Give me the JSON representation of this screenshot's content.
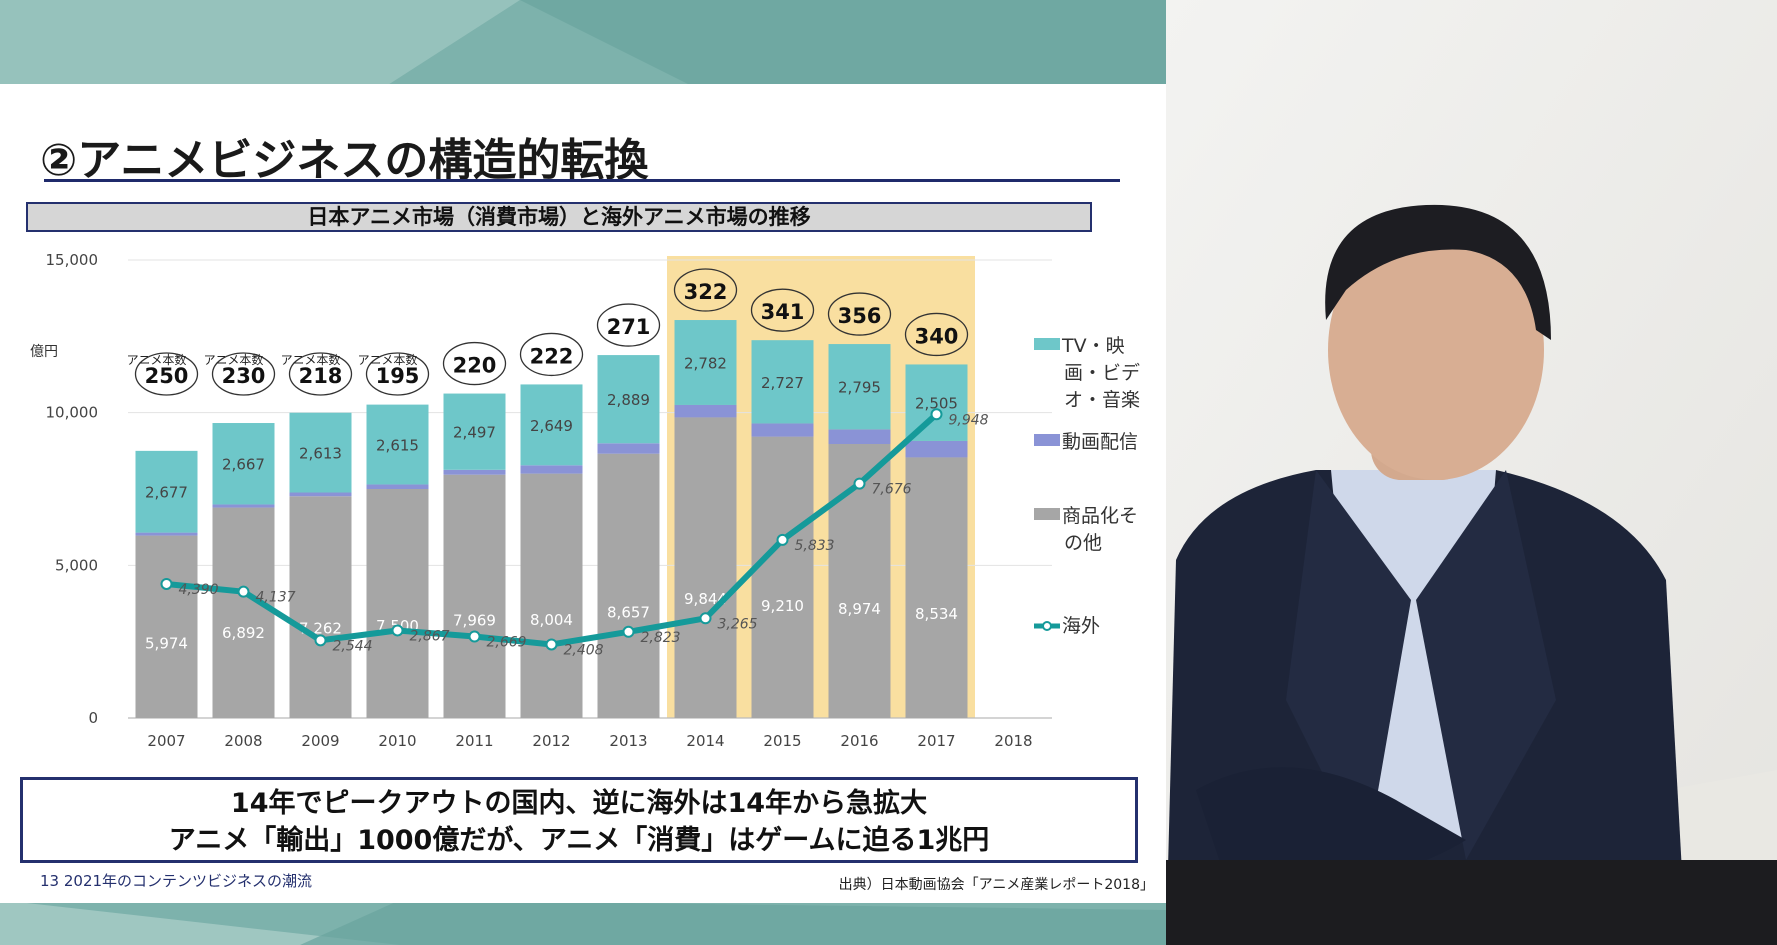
{
  "slide": {
    "title": "②アニメビジネスの構造的転換",
    "chart_header": "日本アニメ市場（消費市場）と海外アニメ市場の推移",
    "callout_line1": "14年でピークアウトの国内、逆に海外は14年から急拡大",
    "callout_line2": "アニメ「輸出」1000億だが、アニメ「消費」はゲームに迫る1兆円",
    "footer_left": "13   2021年のコンテンツビジネスの潮流",
    "footer_right": "出典）日本動画協会「アニメ産業レポート2018」"
  },
  "chart_data": {
    "type": "bar",
    "stacked": true,
    "unit_label": "億円",
    "categories": [
      "2007",
      "2008",
      "2009",
      "2010",
      "2011",
      "2012",
      "2013",
      "2014",
      "2015",
      "2016",
      "2017",
      "2018"
    ],
    "y_ticks": [
      "0",
      "5,000",
      "10,000",
      "15,000"
    ],
    "ylim": [
      0,
      15000
    ],
    "series": [
      {
        "name": "商品化その他",
        "color": "#a6a6a6",
        "values": [
          5974,
          6892,
          7262,
          7500,
          7969,
          8004,
          8657,
          9844,
          9210,
          8974,
          8534,
          null
        ]
      },
      {
        "name": "動画配信",
        "color": "#8a93d6",
        "values": [
          98,
          102,
          123,
          149,
          160,
          272,
          340,
          408,
          437,
          478,
          540,
          null
        ]
      },
      {
        "name": "TV・映画・ビデオ・音楽",
        "color": "#6ec7c9",
        "values": [
          2677,
          2667,
          2613,
          2615,
          2497,
          2649,
          2889,
          2782,
          2727,
          2795,
          2505,
          null
        ]
      }
    ],
    "line_series": {
      "name": "海外",
      "color": "#159a9a",
      "values": [
        4390,
        4137,
        2544,
        2867,
        2669,
        2408,
        2823,
        3265,
        5833,
        7676,
        9948,
        null
      ]
    },
    "line_labels": [
      "4,390",
      "4,137",
      "2,544",
      "2,867",
      "2,669",
      "2,408",
      "2,823",
      "3,265",
      "5,833",
      "7,676",
      "9,948"
    ],
    "bar_labels": {
      "goods": [
        "5,974",
        "6,892",
        "7,262",
        "7,500",
        "7,969",
        "8,004",
        "8,657",
        "9,844",
        "9,210",
        "8,974",
        "8,534"
      ],
      "streaming": [
        "98",
        "102",
        "123",
        "149",
        "160",
        "272",
        "340",
        "408",
        "437",
        "478",
        "540"
      ],
      "tv": [
        "2,677",
        "2,667",
        "2,613",
        "2,615",
        "2,497",
        "2,649",
        "2,889",
        "2,782",
        "2,727",
        "2,795",
        "2,505"
      ]
    },
    "title_counts": [
      "250",
      "230",
      "218",
      "195",
      "220",
      "222",
      "271",
      "322",
      "341",
      "356",
      "340"
    ],
    "title_count_label": "アニメ本数",
    "highlight_years": [
      "2014",
      "2015",
      "2016",
      "2017"
    ],
    "highlight_color": "#f9dfa0",
    "legend": [
      {
        "lines": [
          "TV・映",
          "画・ビデ",
          "オ・音楽"
        ],
        "color": "#6ec7c9"
      },
      {
        "lines": [
          "動画配信"
        ],
        "color": "#8a93d6"
      },
      {
        "lines": [
          "商品化そ",
          "の他"
        ],
        "color": "#a6a6a6"
      },
      {
        "lines": [
          "海外"
        ],
        "color": "#159a9a"
      }
    ]
  }
}
